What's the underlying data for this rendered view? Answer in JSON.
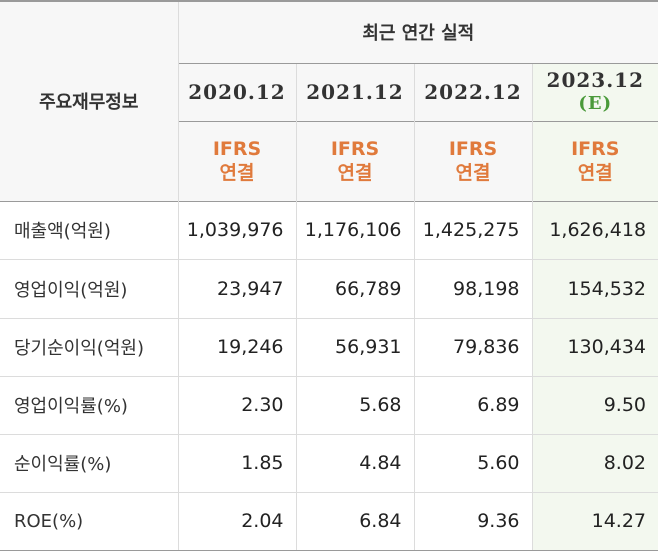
{
  "header": {
    "section_title": "최근 연간 실적",
    "row_label": "주요재무정보",
    "years": [
      {
        "label": "2020.12",
        "sub": ""
      },
      {
        "label": "2021.12",
        "sub": ""
      },
      {
        "label": "2022.12",
        "sub": ""
      },
      {
        "label": "2023.12",
        "sub": "(E)"
      }
    ],
    "basis": [
      {
        "line1": "IFRS",
        "line2": "연결"
      },
      {
        "line1": "IFRS",
        "line2": "연결"
      },
      {
        "line1": "IFRS",
        "line2": "연결"
      },
      {
        "line1": "IFRS",
        "line2": "연결"
      }
    ]
  },
  "rows": [
    {
      "label": "매출액(억원)",
      "values": [
        "1,039,976",
        "1,176,106",
        "1,425,275",
        "1,626,418"
      ]
    },
    {
      "label": "영업이익(억원)",
      "values": [
        "23,947",
        "66,789",
        "98,198",
        "154,532"
      ]
    },
    {
      "label": "당기순이익(억원)",
      "values": [
        "19,246",
        "56,931",
        "79,836",
        "130,434"
      ]
    },
    {
      "label": "영업이익률(%)",
      "values": [
        "2.30",
        "5.68",
        "6.89",
        "9.50"
      ]
    },
    {
      "label": "순이익률(%)",
      "values": [
        "1.85",
        "4.84",
        "5.60",
        "8.02"
      ]
    },
    {
      "label": "ROE(%)",
      "values": [
        "2.04",
        "6.84",
        "9.36",
        "14.27"
      ]
    }
  ]
}
